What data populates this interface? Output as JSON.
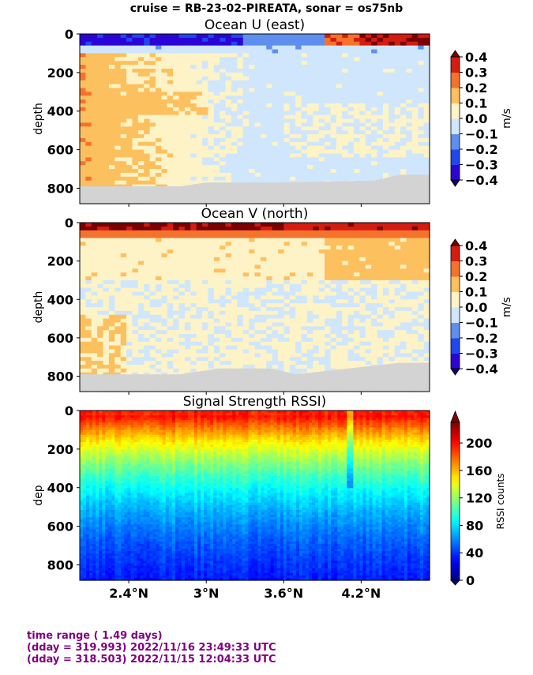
{
  "suptitle": "cruise = RB-23-02-PIREATA,  sonar = os75nb",
  "chart_data": [
    {
      "type": "heatmap",
      "title": "Ocean U (east)",
      "ylabel": "depth",
      "ylim": [
        880,
        0
      ],
      "yticks": [
        0,
        200,
        400,
        600,
        800
      ],
      "xticks": [
        "2.4°N",
        "3°N",
        "3.6°N",
        "4.2°N"
      ],
      "xtick_values": [
        2.4,
        3.0,
        3.6,
        4.2
      ],
      "xlim": [
        2.02,
        4.73
      ],
      "colorbar": {
        "label": "m/s",
        "ticks": [
          "0.4",
          "0.3",
          "0.2",
          "0.1",
          "0.0",
          "−0.1",
          "−0.2",
          "−0.3",
          "−0.4"
        ],
        "levels": [
          -0.4,
          -0.3,
          -0.2,
          -0.1,
          0.0,
          0.1,
          0.2,
          0.3,
          0.4
        ],
        "colors": [
          "#2a05d6",
          "#2346ee",
          "#5f8fee",
          "#cfe6fc",
          "#fdf3c6",
          "#fdc05e",
          "#f5722d",
          "#d41c10"
        ],
        "extend_colors": [
          "#1a0066",
          "#7a0000"
        ]
      },
      "bottom_depth_profile": [
        [
          2.02,
          790
        ],
        [
          2.8,
          790
        ],
        [
          3.0,
          770
        ],
        [
          3.4,
          770
        ],
        [
          3.6,
          770
        ],
        [
          4.3,
          760
        ],
        [
          4.5,
          730
        ],
        [
          4.73,
          730
        ]
      ],
      "no_data_color": "#d3d3d3"
    },
    {
      "type": "heatmap",
      "title": "Ocean V (north)",
      "ylabel": "depth",
      "ylim": [
        880,
        0
      ],
      "yticks": [
        0,
        200,
        400,
        600,
        800
      ],
      "xticks": [
        "2.4°N",
        "3°N",
        "3.6°N",
        "4.2°N"
      ],
      "xtick_values": [
        2.4,
        3.0,
        3.6,
        4.2
      ],
      "xlim": [
        2.02,
        4.73
      ],
      "colorbar": {
        "label": "m/s",
        "ticks": [
          "0.4",
          "0.3",
          "0.2",
          "0.1",
          "0.0",
          "−0.1",
          "−0.2",
          "−0.3",
          "−0.4"
        ],
        "levels": [
          -0.4,
          -0.3,
          -0.2,
          -0.1,
          0.0,
          0.1,
          0.2,
          0.3,
          0.4
        ],
        "colors": [
          "#2a05d6",
          "#2346ee",
          "#5f8fee",
          "#cfe6fc",
          "#fdf3c6",
          "#fdc05e",
          "#f5722d",
          "#d41c10"
        ],
        "extend_colors": [
          "#1a0066",
          "#7a0000"
        ]
      },
      "bottom_depth_profile": [
        [
          2.02,
          790
        ],
        [
          2.8,
          790
        ],
        [
          3.1,
          760
        ],
        [
          3.5,
          760
        ],
        [
          3.7,
          790
        ],
        [
          4.5,
          730
        ],
        [
          4.73,
          730
        ]
      ],
      "no_data_color": "#d3d3d3"
    },
    {
      "type": "heatmap",
      "title": "Signal Strength RSSI)",
      "ylabel": "dep",
      "ylim": [
        880,
        0
      ],
      "yticks": [
        0,
        200,
        400,
        600,
        800
      ],
      "xticks": [
        "2.4°N",
        "3°N",
        "3.6°N",
        "4.2°N"
      ],
      "xtick_values": [
        2.4,
        3.0,
        3.6,
        4.2
      ],
      "xlim": [
        2.02,
        4.73
      ],
      "colorbar": {
        "label": "RSSI counts",
        "ticks": [
          "200",
          "160",
          "120",
          "80",
          "40",
          "0"
        ],
        "range": [
          0,
          230
        ]
      }
    }
  ],
  "footer": {
    "line1": "time range ( 1.49 days)",
    "line2": "(dday = 319.993) 2022/11/16 23:49:33 UTC",
    "line3": "(dday = 318.503) 2022/11/15 12:04:33 UTC"
  }
}
